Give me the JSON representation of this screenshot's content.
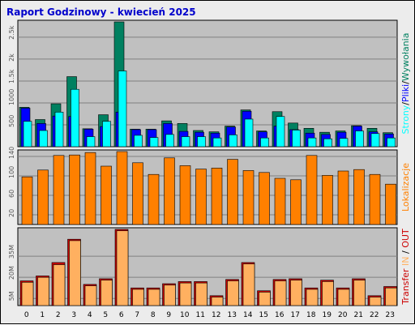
{
  "title": "Raport Godzinowy -  kwiecień 2025",
  "colors": {
    "strony": "#00ffff",
    "pliki": "#0000ff",
    "wywolania": "#008060",
    "lokalizacje": "#ff8000",
    "transfer_in": "#ffb060",
    "transfer_out": "#cc0000",
    "panel_bg": "#c0c0c0",
    "frame_bg": "#ececec"
  },
  "chart_data": [
    {
      "type": "bar",
      "name": "hits",
      "categories": [
        "0",
        "1",
        "2",
        "3",
        "4",
        "5",
        "6",
        "7",
        "8",
        "9",
        "10",
        "11",
        "12",
        "13",
        "14",
        "15",
        "16",
        "17",
        "18",
        "19",
        "20",
        "21",
        "22",
        "23"
      ],
      "series": [
        {
          "name": "Wywołania",
          "values": [
            900,
            620,
            980,
            1600,
            410,
            730,
            2850,
            400,
            400,
            590,
            530,
            370,
            340,
            470,
            840,
            360,
            800,
            540,
            420,
            330,
            360,
            480,
            420,
            320
          ]
        },
        {
          "name": "Pliki",
          "values": [
            880,
            530,
            700,
            690,
            400,
            460,
            790,
            390,
            390,
            530,
            350,
            330,
            310,
            450,
            810,
            340,
            470,
            390,
            310,
            280,
            330,
            470,
            340,
            290
          ]
        },
        {
          "name": "Strony",
          "values": [
            580,
            370,
            790,
            1310,
            230,
            580,
            1730,
            260,
            210,
            280,
            230,
            230,
            200,
            270,
            630,
            200,
            690,
            380,
            200,
            180,
            190,
            360,
            300,
            200
          ]
        }
      ],
      "ytick_labels": [
        "500",
        "1000",
        "1.5k",
        "2k",
        "2.5k"
      ],
      "ylim": [
        0,
        2850
      ],
      "side_labels": [
        "Strony",
        "/",
        "Pliki",
        "/",
        "Wywołania"
      ]
    },
    {
      "type": "bar",
      "name": "visits",
      "categories": [
        "0",
        "1",
        "2",
        "3",
        "4",
        "5",
        "6",
        "7",
        "8",
        "9",
        "10",
        "11",
        "12",
        "13",
        "14",
        "15",
        "16",
        "17",
        "18",
        "19",
        "20",
        "21",
        "22",
        "23"
      ],
      "series": [
        {
          "name": "Lokalizacje",
          "values": [
            98,
            112,
            142,
            143,
            148,
            120,
            150,
            127,
            103,
            137,
            121,
            114,
            116,
            134,
            111,
            107,
            95,
            92,
            142,
            101,
            110,
            113,
            103,
            83
          ]
        }
      ],
      "ytick_labels": [
        "20",
        "60",
        "100",
        "140"
      ],
      "ylim": [
        0,
        150
      ],
      "side_labels": [
        "Lokalizacje"
      ]
    },
    {
      "type": "bar",
      "name": "transfer",
      "categories": [
        "0",
        "1",
        "2",
        "3",
        "4",
        "5",
        "6",
        "7",
        "8",
        "9",
        "10",
        "11",
        "12",
        "13",
        "14",
        "15",
        "16",
        "17",
        "18",
        "19",
        "20",
        "21",
        "22",
        "23"
      ],
      "series": [
        {
          "name": "OUT",
          "values": [
            17.5,
            21,
            30.5,
            47,
            15,
            19,
            54,
            12.5,
            12.5,
            15.5,
            17,
            17,
            7,
            18.5,
            30.5,
            10.5,
            18.5,
            19,
            12.5,
            18,
            12.5,
            19,
            7,
            13.5
          ]
        },
        {
          "name": "IN",
          "values": [
            16.5,
            20,
            29,
            46,
            14,
            18,
            53,
            11.5,
            11.5,
            14.5,
            16,
            16,
            6,
            17.5,
            29.5,
            9.5,
            17.5,
            18,
            11.5,
            17,
            11.5,
            18,
            6,
            12.5
          ]
        }
      ],
      "ytick_labels": [
        "5M",
        "20M",
        "35M"
      ],
      "ylim": [
        0,
        54
      ],
      "side_labels": [
        "Transfer",
        " ",
        "IN",
        " / ",
        "OUT"
      ]
    }
  ]
}
